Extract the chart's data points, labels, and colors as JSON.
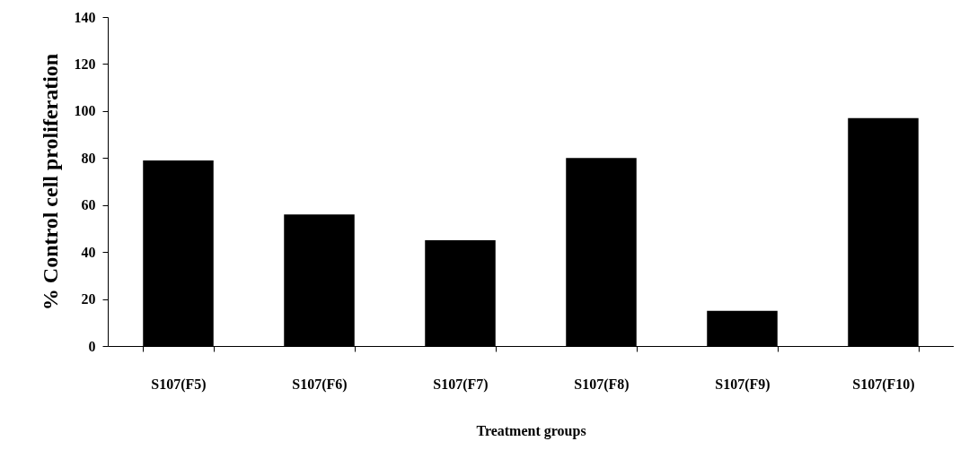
{
  "chart_data": {
    "type": "bar",
    "xlabel": "Treatment groups",
    "ylabel": "% Control cell proliferation",
    "categories": [
      "S107(F5)",
      "S107(F6)",
      "S107(F7)",
      "S107(F8)",
      "S107(F9)",
      "S107(F10)"
    ],
    "values": [
      79,
      56,
      45,
      80,
      15,
      97
    ],
    "color": "#000000",
    "ylim": [
      0,
      140
    ],
    "yticks": [
      0,
      20,
      40,
      60,
      80,
      100,
      120,
      140
    ],
    "grid": false
  }
}
